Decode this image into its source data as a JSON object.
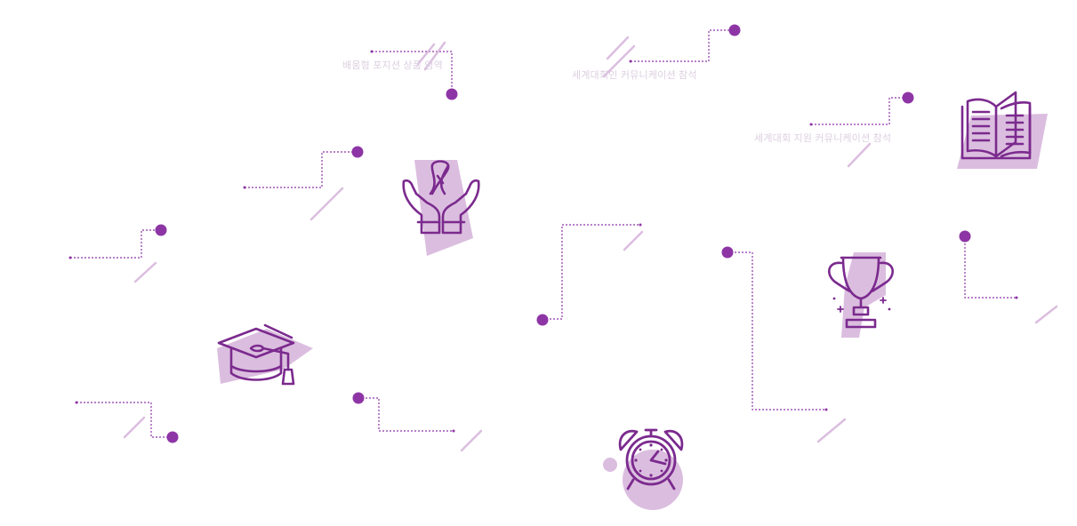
{
  "palette": {
    "primary": "#7b2a8e",
    "dot": "#8e35a6",
    "soft": "#dbbedf",
    "faint_text": "#dccfe0"
  },
  "labels": {
    "label_1": "배움형 포지션 상품 영역",
    "label_2": "세계대회인 커뮤니케이션 참석",
    "label_3": "세계대회 지원 커뮤니케이션 참석"
  },
  "icons": [
    {
      "name": "graduation-cap-icon"
    },
    {
      "name": "awareness-ribbon-hands-icon"
    },
    {
      "name": "alarm-clock-icon"
    },
    {
      "name": "trophy-icon"
    },
    {
      "name": "open-book-icon"
    }
  ]
}
